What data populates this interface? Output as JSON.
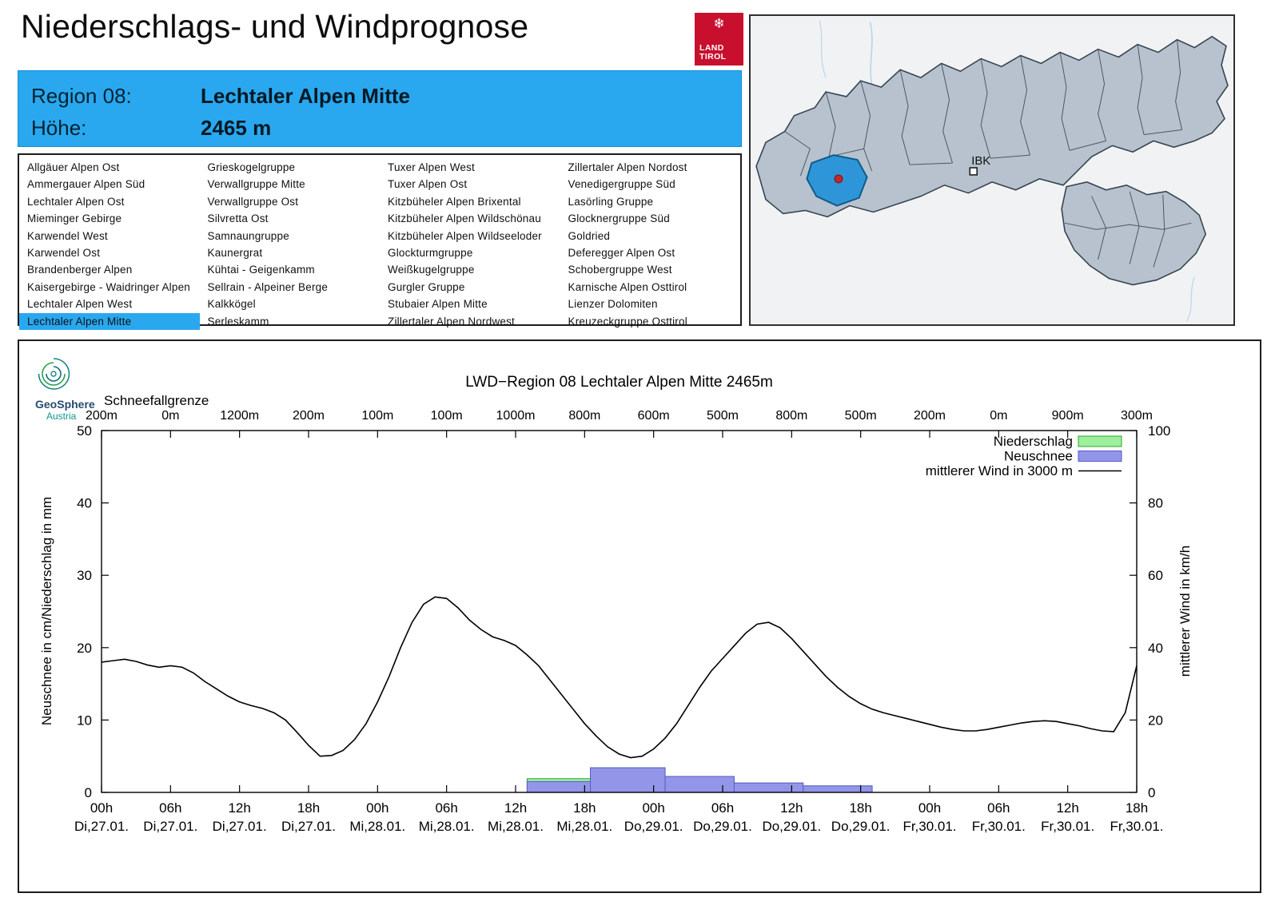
{
  "page": {
    "title": "Niederschlags- und Windprognose"
  },
  "brand": {
    "logo_icon": "❄",
    "logo_line1": "LAND",
    "logo_line2": "TIROL",
    "logo_color": "#C8102E"
  },
  "region_header": {
    "region_label": "Region 08:",
    "region_name": "Lechtaler Alpen Mitte",
    "altitude_label": "Höhe:",
    "altitude_value": "2465 m",
    "accent_color": "#29A8F0"
  },
  "region_list": {
    "selected": "Lechtaler Alpen Mitte",
    "highlight_color": "#29A8F0",
    "columns": [
      [
        "Allgäuer Alpen Ost",
        "Ammergauer Alpen Süd",
        "Lechtaler Alpen Ost",
        "Mieminger Gebirge",
        "Karwendel West",
        "Karwendel Ost",
        "Brandenberger Alpen",
        "Kaisergebirge - Waidringer Alpen",
        "Lechtaler Alpen West",
        "Lechtaler Alpen Mitte"
      ],
      [
        "Grieskogelgruppe",
        "Verwallgruppe Mitte",
        "Verwallgruppe Ost",
        "Silvretta Ost",
        "Samnaungruppe",
        "Kaunergrat",
        "Kühtai - Geigenkamm",
        "Sellrain - Alpeiner Berge",
        "Kalkkögel",
        "Serleskamm"
      ],
      [
        "Tuxer Alpen West",
        "Tuxer Alpen Ost",
        "Kitzbüheler Alpen Brixental",
        "Kitzbüheler Alpen Wildschönau",
        "Kitzbüheler Alpen Wildseeloder",
        "Glockturmgruppe",
        "Weißkugelgruppe",
        "Gurgler Gruppe",
        "Stubaier Alpen Mitte",
        "Zillertaler Alpen Nordwest"
      ],
      [
        "Zillertaler Alpen Nordost",
        "Venedigergruppe Süd",
        "Lasörling Gruppe",
        "Glocknergruppe Süd",
        "Goldried",
        "Deferegger Alpen Ost",
        "Schobergruppe West",
        "Karnische Alpen Osttirol",
        "Lienzer Dolomiten",
        "Kreuzeckgruppe Osttirol"
      ]
    ]
  },
  "map": {
    "city_label": "IBK",
    "selected_region_color": "#2E96D8",
    "selected_marker_color": "#C1272D"
  },
  "geosphere": {
    "name": "GeoSphere",
    "country": "Austria"
  },
  "chart_data": {
    "type": "line+bar",
    "title": "LWD−Region 08 Lechtaler Alpen Mitte 2465m",
    "ylabel_left": "Neuschnee in cm/Niederschlag in mm",
    "ylabel_right": "mittlerer Wind in km/h",
    "ylim_left": [
      0,
      50
    ],
    "yticks_left": [
      0,
      10,
      20,
      30,
      40,
      50
    ],
    "ylim_right": [
      0,
      100
    ],
    "yticks_right": [
      0,
      20,
      40,
      60,
      80,
      100
    ],
    "x_hours_total": 90,
    "x_tick_step_hours": 6,
    "x_tick_hours": [
      "00h",
      "06h",
      "12h",
      "18h",
      "00h",
      "06h",
      "12h",
      "18h",
      "00h",
      "06h",
      "12h",
      "18h",
      "00h",
      "06h",
      "12h",
      "18h"
    ],
    "x_tick_days": [
      "Di,27.01.",
      "Di,27.01.",
      "Di,27.01.",
      "Di,27.01.",
      "Mi,28.01.",
      "Mi,28.01.",
      "Mi,28.01.",
      "Mi,28.01.",
      "Do,29.01.",
      "Do,29.01.",
      "Do,29.01.",
      "Do,29.01.",
      "Fr,30.01.",
      "Fr,30.01.",
      "Fr,30.01.",
      "Fr,30.01."
    ],
    "schneefallgrenze": {
      "label": "Schneefallgrenze",
      "values": [
        "200m",
        "0m",
        "1200m",
        "200m",
        "100m",
        "100m",
        "1000m",
        "800m",
        "600m",
        "500m",
        "800m",
        "500m",
        "200m",
        "0m",
        "900m",
        "300m"
      ]
    },
    "legend": [
      {
        "label": "Niederschlag",
        "type": "box",
        "color": "#9CF09C",
        "border": "#2FA32F"
      },
      {
        "label": "Neuschnee",
        "type": "box",
        "color": "#9395E8",
        "border": "#5A5CCB"
      },
      {
        "label": "mittlerer Wind in 3000 m",
        "type": "line",
        "color": "#000000"
      }
    ],
    "series": [
      {
        "name": "Niederschlag",
        "axis": "left",
        "unit": "mm",
        "type": "bars",
        "bars": [
          {
            "from_h": 37,
            "to_h": 42.5,
            "value": 1.9
          },
          {
            "from_h": 42.5,
            "to_h": 49,
            "value": 3.4
          },
          {
            "from_h": 49,
            "to_h": 55,
            "value": 2.2
          },
          {
            "from_h": 55,
            "to_h": 61,
            "value": 1.3
          },
          {
            "from_h": 61,
            "to_h": 67,
            "value": 0.9
          }
        ]
      },
      {
        "name": "Neuschnee",
        "axis": "left",
        "unit": "cm",
        "type": "bars",
        "bars": [
          {
            "from_h": 37,
            "to_h": 42.5,
            "value": 1.5
          },
          {
            "from_h": 42.5,
            "to_h": 49,
            "value": 3.4
          },
          {
            "from_h": 49,
            "to_h": 55,
            "value": 2.2
          },
          {
            "from_h": 55,
            "to_h": 61,
            "value": 1.3
          },
          {
            "from_h": 61,
            "to_h": 67,
            "value": 0.9
          }
        ]
      },
      {
        "name": "mittlerer Wind in 3000 m",
        "axis": "right",
        "unit": "km/h",
        "type": "line",
        "x_start_h": 0,
        "x_step_h": 1,
        "values": [
          36,
          36.4,
          36.8,
          36.2,
          35.2,
          34.6,
          35,
          34.6,
          33,
          30.6,
          28.6,
          26.6,
          25,
          24,
          23.2,
          22,
          20,
          16.6,
          13,
          10,
          10.2,
          11.6,
          14.6,
          19,
          25,
          32,
          40,
          47,
          52,
          54,
          53.6,
          51,
          47.6,
          45,
          43,
          42,
          40.6,
          38,
          35,
          31,
          27,
          23,
          19,
          15.6,
          12.6,
          10.6,
          9.6,
          10,
          12,
          15,
          19,
          24,
          29,
          33.5,
          37,
          40.5,
          44,
          46.5,
          47,
          45.5,
          42.5,
          39,
          35.5,
          32,
          29,
          26.5,
          24.5,
          23,
          22,
          21.2,
          20.4,
          19.6,
          18.8,
          18,
          17.4,
          17,
          17,
          17.4,
          18,
          18.6,
          19.2,
          19.6,
          19.8,
          19.6,
          19,
          18.4,
          17.6,
          17,
          16.8,
          22,
          35
        ]
      }
    ]
  }
}
